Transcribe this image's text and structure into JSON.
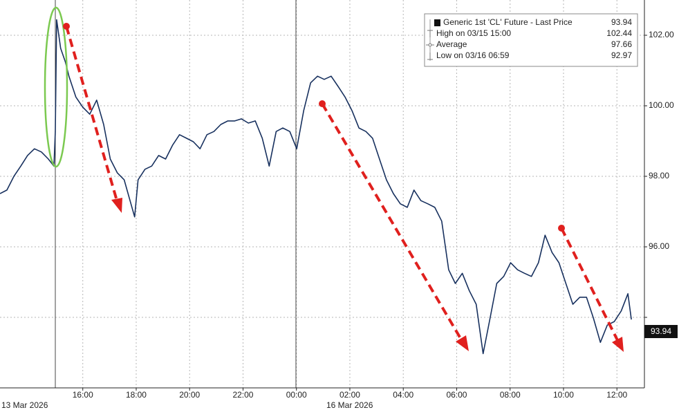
{
  "chart_data": {
    "type": "line",
    "xlim": [
      12.9,
      37.03
    ],
    "ylim": [
      92,
      103
    ],
    "xticks": [
      {
        "value": 16,
        "label": "16:00"
      },
      {
        "value": 18,
        "label": "18:00"
      },
      {
        "value": 20,
        "label": "20:00"
      },
      {
        "value": 22,
        "label": "22:00"
      },
      {
        "value": 24,
        "label": "00:00"
      },
      {
        "value": 26,
        "label": "02:00"
      },
      {
        "value": 28,
        "label": "04:00"
      },
      {
        "value": 30,
        "label": "06:00"
      },
      {
        "value": 32,
        "label": "08:00"
      },
      {
        "value": 34,
        "label": "10:00"
      },
      {
        "value": 36,
        "label": "12:00"
      }
    ],
    "yticks": [
      {
        "value": 94,
        "label": null
      },
      {
        "value": 96,
        "label": "96.00"
      },
      {
        "value": 98,
        "label": "98.00"
      },
      {
        "value": 100,
        "label": "100.00"
      },
      {
        "value": 102,
        "label": "102.00"
      }
    ],
    "date_labels": [
      "13 Mar 2026",
      "16 Mar 2026"
    ],
    "grid": true,
    "legend": [
      {
        "label": "Generic 1st 'CL' Future - Last Price",
        "value": 93.94
      },
      {
        "label": "High on 03/15 15:00",
        "value": 102.44
      },
      {
        "label": "Average",
        "value": 97.66
      },
      {
        "label": "Low on 03/16 06:59",
        "value": 92.97
      }
    ],
    "series": [
      {
        "name": "Generic 1st 'CL' Future - Last Price",
        "color": "#17305e",
        "x": [
          12.9,
          13.16,
          13.42,
          13.68,
          13.93,
          14.19,
          14.45,
          14.71,
          14.92,
          14.97,
          15.02,
          15.17,
          15.35,
          15.48,
          15.74,
          16.0,
          16.26,
          16.52,
          16.78,
          17.03,
          17.29,
          17.55,
          17.94,
          18.07,
          18.33,
          18.58,
          18.84,
          19.1,
          19.36,
          19.62,
          19.88,
          20.14,
          20.39,
          20.65,
          20.91,
          21.17,
          21.43,
          21.69,
          21.94,
          22.2,
          22.46,
          22.72,
          22.98,
          23.24,
          23.49,
          23.75,
          24.01,
          24.27,
          24.53,
          24.79,
          25.04,
          25.3,
          25.56,
          25.82,
          26.08,
          26.34,
          26.6,
          26.85,
          27.11,
          27.37,
          27.63,
          27.89,
          28.15,
          28.4,
          28.66,
          28.92,
          29.18,
          29.44,
          29.7,
          29.95,
          30.21,
          30.47,
          30.73,
          30.99,
          31.25,
          31.5,
          31.76,
          32.02,
          32.28,
          32.54,
          32.8,
          33.06,
          33.31,
          33.57,
          33.83,
          34.09,
          34.35,
          34.61,
          34.86,
          35.12,
          35.38,
          35.64,
          35.9,
          36.16,
          36.41,
          36.54
        ],
        "values": [
          97.51,
          97.61,
          98.0,
          98.29,
          98.59,
          98.78,
          98.69,
          98.49,
          98.29,
          99.27,
          102.44,
          101.63,
          101.24,
          100.84,
          100.25,
          99.96,
          99.76,
          100.16,
          99.47,
          98.49,
          98.1,
          97.9,
          96.85,
          97.9,
          98.2,
          98.29,
          98.59,
          98.49,
          98.88,
          99.18,
          99.08,
          98.98,
          98.78,
          99.18,
          99.27,
          99.47,
          99.57,
          99.57,
          99.63,
          99.51,
          99.57,
          99.08,
          98.29,
          99.27,
          99.37,
          99.27,
          98.78,
          99.86,
          100.65,
          100.84,
          100.75,
          100.84,
          100.55,
          100.25,
          99.86,
          99.37,
          99.27,
          99.08,
          98.49,
          97.9,
          97.51,
          97.22,
          97.12,
          97.61,
          97.31,
          97.22,
          97.12,
          96.73,
          95.35,
          94.96,
          95.25,
          94.76,
          94.37,
          92.97,
          93.98,
          94.96,
          95.16,
          95.55,
          95.35,
          95.25,
          95.16,
          95.55,
          96.33,
          95.84,
          95.55,
          94.96,
          94.37,
          94.57,
          94.57,
          93.98,
          93.29,
          93.78,
          93.88,
          94.18,
          94.67,
          93.94
        ]
      }
    ]
  }
}
